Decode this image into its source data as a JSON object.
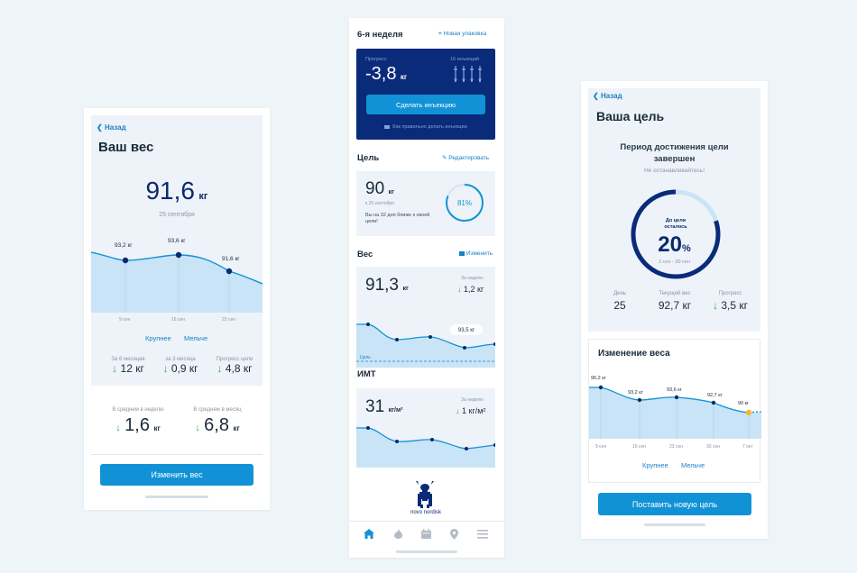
{
  "left": {
    "back": "Назад",
    "title": "Ваш вес",
    "weight_value": "91,6",
    "weight_unit": "кг",
    "date": "25 сентября",
    "chart": {
      "points": [
        {
          "label": "93,2 кг"
        },
        {
          "label": "93,6 кг"
        },
        {
          "label": "91,6 кг"
        }
      ],
      "ticks": [
        "9 сен",
        "16 сен",
        "23 сен"
      ]
    },
    "zoom_in": "Крупнее",
    "zoom_out": "Мельче",
    "stats": [
      {
        "label": "За 6 месяцев",
        "value": "12 кг"
      },
      {
        "label": "за 3 месяца",
        "value": "0,9 кг"
      },
      {
        "label": "Прогресс цели",
        "value": "4,8 кг"
      }
    ],
    "avg": [
      {
        "label": "В среднем в неделю",
        "value": "1,6",
        "unit": "кг"
      },
      {
        "label": "В среднем в месяц",
        "value": "6,8",
        "unit": "кг"
      }
    ],
    "button": "Изменить вес"
  },
  "middle": {
    "week": "6-я неделя",
    "new_pack": "Новая упаковка",
    "progress_label": "Прогресс",
    "progress_value": "-3,8",
    "progress_unit": "кг",
    "injections_label": "16 инъекций",
    "inject_button": "Сделать инъекцию",
    "inject_help": "Как правильно делать инъекции",
    "goal_title": "Цель",
    "goal_edit": "Редактировать",
    "goal_value": "90",
    "goal_unit": "кг",
    "goal_date": "к 25 сентября",
    "goal_note": "Вы на 32 дня ближе к своей цели!",
    "goal_percent": "81%",
    "goal_fraction": 0.81,
    "weight_title": "Вес",
    "weight_change": "Изменить",
    "weight_value": "91,3",
    "weight_unit": "кг",
    "week_label": "За неделю",
    "week_delta": "1,2 кг",
    "weight_point": "93,5 кг",
    "target_label": "Цель",
    "bmi_title": "ИМТ",
    "bmi_value": "31",
    "bmi_unit": "кг/м²",
    "bmi_week_label": "За неделю",
    "bmi_delta": "1 кг/м²",
    "logo_text": "novo nordisk",
    "nav": [
      "home-icon",
      "flame-icon",
      "calendar-icon",
      "location-icon",
      "menu-icon"
    ]
  },
  "right": {
    "back": "Назад",
    "title": "Ваша цель",
    "period_title": "Период достижения цели завершен",
    "period_sub": "Не останавливайтесь!",
    "remaining_label": "До цели осталось",
    "remaining_value": "20",
    "remaining_unit": "%",
    "remaining_fraction": 0.8,
    "range": "2 сен - 30 сен",
    "stats": [
      {
        "label": "День",
        "value": "25"
      },
      {
        "label": "Текущий вес",
        "value": "92,7 кг"
      },
      {
        "label": "Прогресс",
        "value": "3,5 кг"
      }
    ],
    "change_title": "Изменение веса",
    "chart": {
      "points": [
        {
          "label": "96,2 кг"
        },
        {
          "label": "93,2 кг"
        },
        {
          "label": "93,6 кг"
        },
        {
          "label": "92,7 кг"
        },
        {
          "label": "90 кг"
        }
      ],
      "ticks": [
        "9 сен",
        "16 сен",
        "23 сен",
        "30 сен",
        "7 окт"
      ]
    },
    "zoom_in": "Крупнее",
    "zoom_out": "Мельче",
    "button": "Поставить новую цель"
  }
}
